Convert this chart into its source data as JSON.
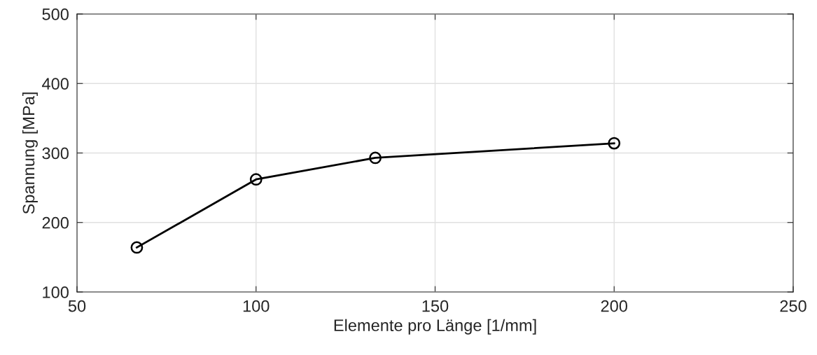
{
  "chart_data": {
    "type": "line",
    "xlabel": "Elemente pro Länge [1/mm]",
    "ylabel": "Spannung [MPa]",
    "x": [
      66.7,
      100,
      133.3,
      200
    ],
    "series": [
      {
        "color": "#000000",
        "values": [
          164,
          262,
          293,
          314
        ]
      }
    ],
    "xlim": [
      50,
      250
    ],
    "xticks": [
      50,
      100,
      150,
      200,
      250
    ],
    "ylim": [
      100,
      500
    ],
    "yticks": [
      100,
      200,
      300,
      400,
      500
    ],
    "grid": true,
    "marker": "circle",
    "line_style": "solid"
  }
}
